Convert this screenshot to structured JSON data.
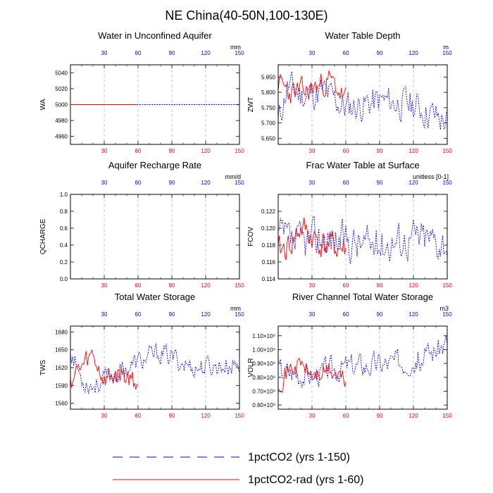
{
  "title": "NE China(40-50N,100-130E)",
  "colors": {
    "series1": "#0000ff",
    "series2": "#ff0000",
    "top_ticks": "#0000ff",
    "bottom_ticks": "#ff0000"
  },
  "legend": {
    "entries": [
      {
        "label": "1pctCO2 (yrs 1-150)",
        "color": "#0000ff",
        "dash": "dashed"
      },
      {
        "label": "1pctCO2-rad (yrs 1-60)",
        "color": "#ff0000",
        "dash": "solid"
      }
    ]
  },
  "chart_data": [
    {
      "type": "line",
      "title": "Water in Unconfined Aquifer",
      "ylabel": "WA",
      "unit": "mm",
      "xlim": [
        0,
        150
      ],
      "ylim": [
        4950,
        5050
      ],
      "yticks": [
        4960,
        4980,
        5000,
        5020,
        5040
      ],
      "ytick_labels": [
        "4960",
        "4980",
        "5000",
        "5020",
        "5040"
      ],
      "series": [
        {
          "name": "1pctCO2 (yrs 1-150)",
          "mode": "constant",
          "value": 5000,
          "x_end": 150
        },
        {
          "name": "1pctCO2-rad (yrs 1-60)",
          "mode": "constant",
          "value": 5000,
          "x_end": 60
        }
      ]
    },
    {
      "type": "line",
      "title": "Water Table Depth",
      "ylabel": "ZWT",
      "unit": "m",
      "xlim": [
        0,
        150
      ],
      "ylim": [
        5.63,
        5.89
      ],
      "yticks": [
        5.65,
        5.7,
        5.75,
        5.8,
        5.85
      ],
      "ytick_labels": [
        "5.650",
        "5.700",
        "5.750",
        "5.800",
        "5.850"
      ],
      "series": [
        {
          "name": "1pctCO2 (yrs 1-150)",
          "mode": "wave",
          "base": 5.775,
          "amp": 0.065,
          "x_end": 150,
          "seed": 11,
          "keys": [
            [
              0,
              5.7
            ],
            [
              8,
              5.82
            ],
            [
              20,
              5.79
            ],
            [
              40,
              5.8
            ],
            [
              60,
              5.75
            ],
            [
              90,
              5.77
            ],
            [
              120,
              5.76
            ],
            [
              150,
              5.7
            ]
          ]
        },
        {
          "name": "1pctCO2-rad (yrs 1-60)",
          "mode": "wave",
          "base": 5.79,
          "amp": 0.05,
          "x_end": 60,
          "seed": 23,
          "keys": [
            [
              0,
              5.83
            ],
            [
              10,
              5.8
            ],
            [
              25,
              5.8
            ],
            [
              35,
              5.82
            ],
            [
              45,
              5.84
            ],
            [
              60,
              5.78
            ]
          ]
        }
      ]
    },
    {
      "type": "line",
      "title": "Aquifer Recharge Rate",
      "ylabel": "QCHARGE",
      "unit": "mm/d",
      "xlim": [
        0,
        150
      ],
      "ylim": [
        0,
        1
      ],
      "yticks": [
        0.0,
        0.2,
        0.4,
        0.6,
        0.8,
        1.0
      ],
      "ytick_labels": [
        "0.0",
        "0.2",
        "0.4",
        "0.6",
        "0.8",
        "1.0"
      ],
      "series": []
    },
    {
      "type": "line",
      "title": "Frac Water Table at Surface",
      "ylabel": "FCOV",
      "unit": "unitless [0-1]",
      "xlim": [
        0,
        150
      ],
      "ylim": [
        0.114,
        0.124
      ],
      "yticks": [
        0.114,
        0.116,
        0.118,
        0.12,
        0.122
      ],
      "ytick_labels": [
        "0.114",
        "0.116",
        "0.118",
        "0.120",
        "0.122"
      ],
      "series": [
        {
          "name": "1pctCO2 (yrs 1-150)",
          "mode": "wave",
          "base": 0.1185,
          "amp": 0.0028,
          "x_end": 150,
          "seed": 37,
          "keys": [
            [
              0,
              0.119
            ],
            [
              15,
              0.118
            ],
            [
              40,
              0.119
            ],
            [
              80,
              0.118
            ],
            [
              120,
              0.119
            ],
            [
              150,
              0.1185
            ]
          ]
        },
        {
          "name": "1pctCO2-rad (yrs 1-60)",
          "mode": "wave",
          "base": 0.118,
          "amp": 0.0022,
          "x_end": 60,
          "seed": 41,
          "keys": [
            [
              0,
              0.117
            ],
            [
              10,
              0.118
            ],
            [
              20,
              0.12
            ],
            [
              40,
              0.118
            ],
            [
              60,
              0.1175
            ]
          ]
        }
      ]
    },
    {
      "type": "line",
      "title": "Total Water Storage",
      "ylabel": "TWS",
      "unit": "mm",
      "xlim": [
        0,
        150
      ],
      "ylim": [
        1550,
        1690
      ],
      "yticks": [
        1560,
        1590,
        1620,
        1650,
        1680
      ],
      "ytick_labels": [
        "1560",
        "1590",
        "1620",
        "1650",
        "1680"
      ],
      "series": [
        {
          "name": "1pctCO2 (yrs 1-150)",
          "mode": "wave",
          "base": 1615,
          "amp": 22,
          "x_end": 150,
          "seed": 53,
          "keys": [
            [
              0,
              1650
            ],
            [
              10,
              1600
            ],
            [
              20,
              1590
            ],
            [
              50,
              1620
            ],
            [
              80,
              1645
            ],
            [
              110,
              1620
            ],
            [
              150,
              1625
            ]
          ]
        },
        {
          "name": "1pctCO2-rad (yrs 1-60)",
          "mode": "wave",
          "base": 1610,
          "amp": 25,
          "x_end": 60,
          "seed": 59,
          "keys": [
            [
              0,
              1600
            ],
            [
              10,
              1620
            ],
            [
              20,
              1640
            ],
            [
              30,
              1600
            ],
            [
              45,
              1610
            ],
            [
              60,
              1595
            ]
          ]
        }
      ]
    },
    {
      "type": "line",
      "title": "River Channel Total Water Storage",
      "ylabel": "VOLR",
      "unit": "m3",
      "xlim": [
        0,
        150
      ],
      "ylim": [
        570000000,
        1170000000
      ],
      "yticks": [
        600000000,
        700000000,
        800000000,
        900000000,
        1000000000,
        1100000000
      ],
      "ytick_labels": [
        "0.60×10⁹",
        "0.70×10⁹",
        "0.80×10⁹",
        "0.90×10⁹",
        "1.00×10⁹",
        "1.10×10⁹"
      ],
      "series": [
        {
          "name": "1pctCO2 (yrs 1-150)",
          "mode": "wave",
          "base": 880000000,
          "amp": 110000000,
          "x_end": 150,
          "seed": 67,
          "keys": [
            [
              0,
              850000000
            ],
            [
              30,
              820000000
            ],
            [
              60,
              880000000
            ],
            [
              100,
              900000000
            ],
            [
              130,
              950000000
            ],
            [
              150,
              1050000000
            ]
          ]
        },
        {
          "name": "1pctCO2-rad (yrs 1-60)",
          "mode": "wave",
          "base": 840000000,
          "amp": 90000000,
          "x_end": 60,
          "seed": 71,
          "keys": [
            [
              0,
              780000000
            ],
            [
              10,
              850000000
            ],
            [
              20,
              900000000
            ],
            [
              30,
              800000000
            ],
            [
              45,
              850000000
            ],
            [
              60,
              770000000
            ]
          ]
        }
      ]
    }
  ],
  "x_tick_labels": [
    "30",
    "60",
    "90",
    "120",
    "150"
  ]
}
